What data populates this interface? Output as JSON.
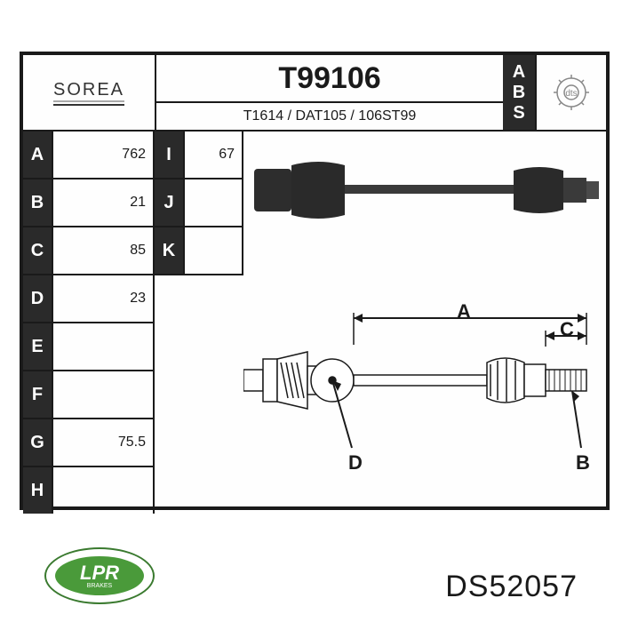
{
  "brand": "SOREA",
  "main_ref": "T99106",
  "sub_ref": "T1614 / DAT105 / 106ST99",
  "abs_label": "ABS",
  "dts_label": "dts",
  "spec_left": [
    {
      "k": "A",
      "v": "762"
    },
    {
      "k": "B",
      "v": "21"
    },
    {
      "k": "C",
      "v": "85"
    },
    {
      "k": "D",
      "v": "23"
    },
    {
      "k": "E",
      "v": ""
    },
    {
      "k": "F",
      "v": ""
    },
    {
      "k": "G",
      "v": "75.5"
    },
    {
      "k": "H",
      "v": ""
    }
  ],
  "spec_mid": [
    {
      "k": "I",
      "v": "67"
    },
    {
      "k": "J",
      "v": ""
    },
    {
      "k": "K",
      "v": ""
    }
  ],
  "lpr": {
    "main": "LPR",
    "sub": "BRAKES"
  },
  "part_code": "DS52057",
  "dim_labels": {
    "A": "A",
    "B": "B",
    "C": "C",
    "D": "D"
  },
  "colors": {
    "frame": "#1a1a1a",
    "dark": "#2a2a2a",
    "lpr_green": "#4a9a3a",
    "lpr_border": "#3a7a2f"
  }
}
